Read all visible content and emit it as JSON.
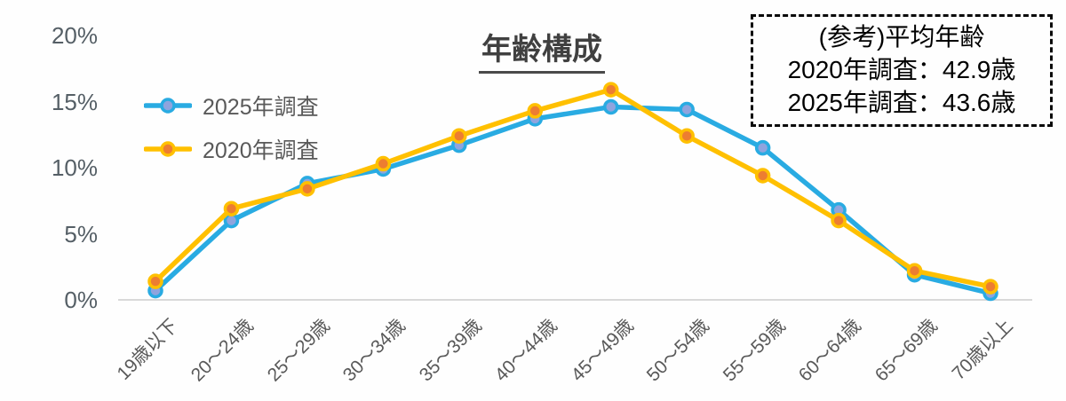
{
  "chart_data": {
    "type": "line",
    "title": "年齢構成",
    "categories": [
      "19歳以下",
      "20〜24歳",
      "25〜29歳",
      "30〜34歳",
      "35〜39歳",
      "40〜44歳",
      "45〜49歳",
      "50〜54歳",
      "55〜59歳",
      "60〜64歳",
      "65〜69歳",
      "70歳以上"
    ],
    "series": [
      {
        "name": "2025年調査",
        "values": [
          0.7,
          6.0,
          8.8,
          9.9,
          11.7,
          13.7,
          14.6,
          14.4,
          11.5,
          6.8,
          1.9,
          0.5
        ],
        "line_color": "#29abe2",
        "marker_color": "#8fa4de"
      },
      {
        "name": "2020年調査",
        "values": [
          1.4,
          6.9,
          8.4,
          10.3,
          12.4,
          14.3,
          15.9,
          12.4,
          9.4,
          6.0,
          2.2,
          1.0
        ],
        "line_color": "#ffc000",
        "marker_color": "#ed7d31"
      }
    ],
    "xlabel": "",
    "ylabel": "",
    "ylim": [
      0,
      20
    ],
    "yticks": [
      "20%",
      "15%",
      "10%",
      "5%",
      "0%"
    ],
    "ytick_values": [
      20,
      15,
      10,
      5,
      0
    ],
    "grid": false,
    "legend_position": "upper-left-inside"
  },
  "reference_box": {
    "title": "(参考)平均年齢",
    "lines": [
      "2020年調査：42.9歳",
      "2025年調査：43.6歳"
    ]
  },
  "colors": {
    "axis_text": "#595959",
    "title_text": "#404040",
    "axis_line": "#d9d9d9",
    "reference_border": "#0a0a0a"
  }
}
